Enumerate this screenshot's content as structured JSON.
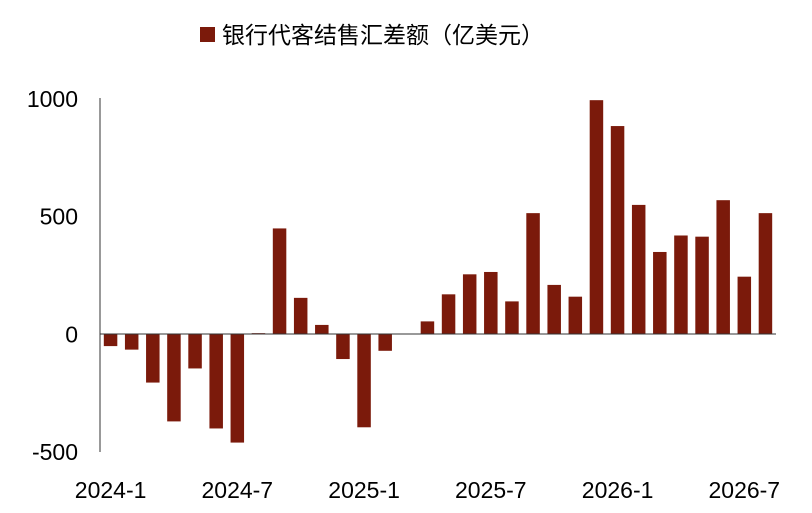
{
  "chart_data": {
    "type": "bar",
    "legend": {
      "label": "银行代客结售汇差额（亿美元）",
      "placement": "top-center"
    },
    "series": [
      {
        "name": "银行代客结售汇差额（亿美元）",
        "color": "#7b1a0b",
        "values": [
          -50,
          -65,
          -205,
          -370,
          -145,
          -400,
          -460,
          5,
          450,
          155,
          40,
          -105,
          -395,
          -70,
          0,
          55,
          170,
          255,
          265,
          140,
          515,
          210,
          160,
          995,
          885,
          550,
          350,
          420,
          415,
          570,
          245,
          515
        ]
      }
    ],
    "categories": [
      "2024-1",
      "2024-2",
      "2024-3",
      "2024-4",
      "2024-5",
      "2024-6",
      "2024-7",
      "2024-8",
      "2024-9",
      "2024-10",
      "2024-11",
      "2024-12",
      "2025-1",
      "2025-2",
      "2025-3",
      "2025-4",
      "2025-5",
      "2025-6",
      "2025-7",
      "2025-8",
      "2025-9",
      "2025-10",
      "2025-11",
      "2025-12",
      "2026-1",
      "2026-2",
      "2026-3",
      "2026-4",
      "2026-5",
      "2026-6",
      "2026-7",
      "2026-8"
    ],
    "x_tick_labels": [
      "2024-1",
      "2024-7",
      "2025-1",
      "2025-7",
      "2026-1",
      "2026-7"
    ],
    "y_ticks": [
      -500,
      0,
      500,
      1000
    ],
    "ylim": [
      -500,
      1000
    ],
    "grid": false,
    "title": "",
    "xlabel": "",
    "ylabel": ""
  }
}
